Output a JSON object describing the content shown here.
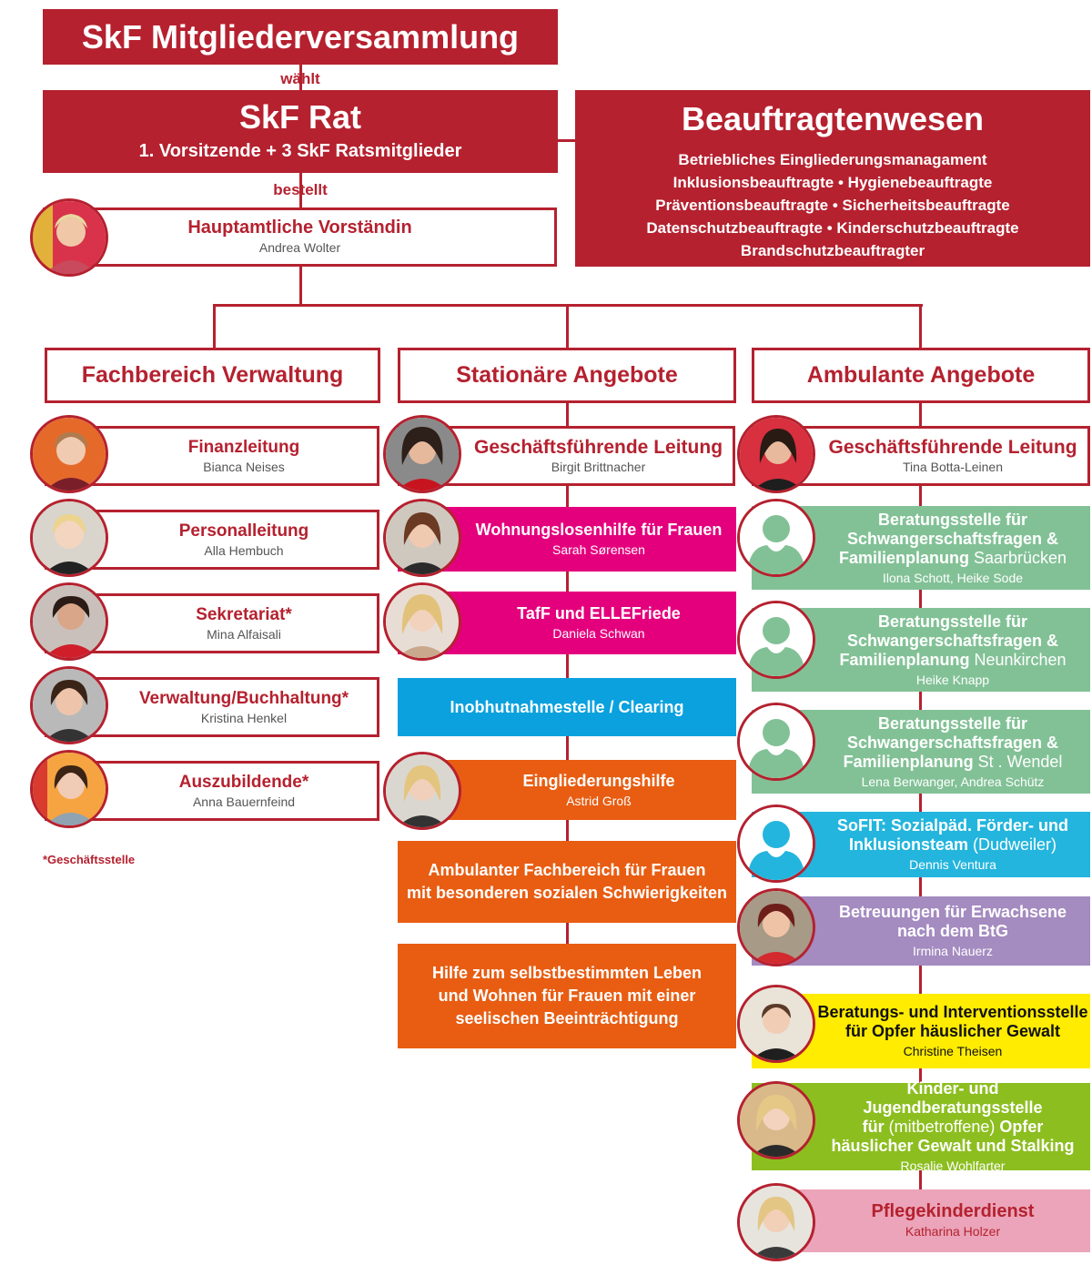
{
  "top": {
    "title": "SkF Mitgliederversammlung",
    "waehlt": "wählt",
    "rat_title": "SkF Rat",
    "rat_sub": "1. Vorsitzende + 3 SkF Ratsmitglieder",
    "bestellt": "bestellt"
  },
  "beauftragte": {
    "title": "Beauftragtenwesen",
    "lines": [
      "Betriebliches Eingliederungsmanagament",
      "Inklusionsbeauftragte • Hygienebeauftragte",
      "Präventionsbeauftragte • Sicherheitsbeauftragte",
      "Datenschutzbeauftragte • Kinderschutzbeauftragte",
      "Brandschutzbeauftragter"
    ]
  },
  "vorstand": {
    "title": "Hauptamtliche Vorständin",
    "name": "Andrea Wolter"
  },
  "columns": {
    "verwaltung": "Fachbereich Verwaltung",
    "stationaer": "Stationäre Angebote",
    "ambulant": "Ambulante Angebote"
  },
  "verwaltung": [
    {
      "title": "Finanzleitung",
      "name": "Bianca Neises"
    },
    {
      "title": "Personalleitung",
      "name": "Alla Hembuch"
    },
    {
      "title": "Sekretariat*",
      "name": "Mina Alfaisali"
    },
    {
      "title": "Verwaltung/Buchhaltung*",
      "name": "Kristina Henkel"
    },
    {
      "title": "Auszubildende*",
      "name": "Anna Bauernfeind"
    }
  ],
  "footnote": "*Geschäftsstelle",
  "stationaer": {
    "leitung": {
      "title": "Geschäftsführende Leitung",
      "name": "Birgit Brittnacher"
    },
    "items": [
      {
        "title": "Wohnungslosenhilfe für Frauen",
        "name": "Sarah Sørensen"
      },
      {
        "title": "TafF und ELLEFriede",
        "name": "Daniela Schwan"
      },
      {
        "title": "Inobhutnahmestelle / Clearing"
      },
      {
        "title": "Eingliederungshilfe",
        "name": "Astrid Groß"
      },
      {
        "line1": "Ambulanter Fachbereich für Frauen",
        "line2": "mit besonderen sozialen Schwierigkeiten"
      },
      {
        "line1": "Hilfe zum selbstbestimmten Leben",
        "line2": "und Wohnen für Frauen mit einer",
        "line3": "seelischen Beeinträchtigung"
      }
    ]
  },
  "ambulant": {
    "leitung": {
      "title": "Geschäftsführende Leitung",
      "name": "Tina Botta-Leinen"
    },
    "items": [
      {
        "line1": "Beratungsstelle für",
        "line2": "Schwangerschaftsfragen &",
        "line3": "Familienplanung",
        "place": "Saarbrücken",
        "name": "Ilona Schott, Heike Sode"
      },
      {
        "line1": "Beratungsstelle für",
        "line2": "Schwangerschaftsfragen &",
        "line3": "Familienplanung",
        "place": "Neunkirchen",
        "name": "Heike Knapp"
      },
      {
        "line1": "Beratungsstelle für",
        "line2": "Schwangerschaftsfragen &",
        "line3": "Familienplanung",
        "place": "St . Wendel",
        "name": "Lena Berwanger, Andrea Schütz"
      },
      {
        "line1": "SoFIT: Sozialpäd. Förder- und",
        "line2": "Inklusionsteam",
        "place": "(Dudweiler)",
        "name": "Dennis Ventura"
      },
      {
        "line1": "Betreuungen für Erwachsene",
        "line2": "nach dem BtG",
        "name": "Irmina Nauerz"
      },
      {
        "line1": "Beratungs- und Interventionsstelle",
        "line2": "für Opfer häuslicher Gewalt",
        "name": "Christine Theisen"
      },
      {
        "line1": "Kinder- und Jugendberatungsstelle",
        "line2a": "für",
        "line2b": "(mitbetroffene)",
        "line2c": "Opfer",
        "line3": "häuslicher Gewalt und Stalking",
        "name": "Rosalie Wohlfarter"
      },
      {
        "title": "Pflegekinderdienst",
        "name": "Katharina Holzer"
      }
    ]
  },
  "colors": {
    "red": "#b5212f",
    "magenta": "#e4007d",
    "blue": "#0aa1de",
    "orange": "#e85d12",
    "green": "#82c196",
    "cyan": "#23b5dd",
    "purple": "#a48bc0",
    "yellow": "#ffec00",
    "lime": "#8cbe1f",
    "pink": "#eba4b9"
  }
}
